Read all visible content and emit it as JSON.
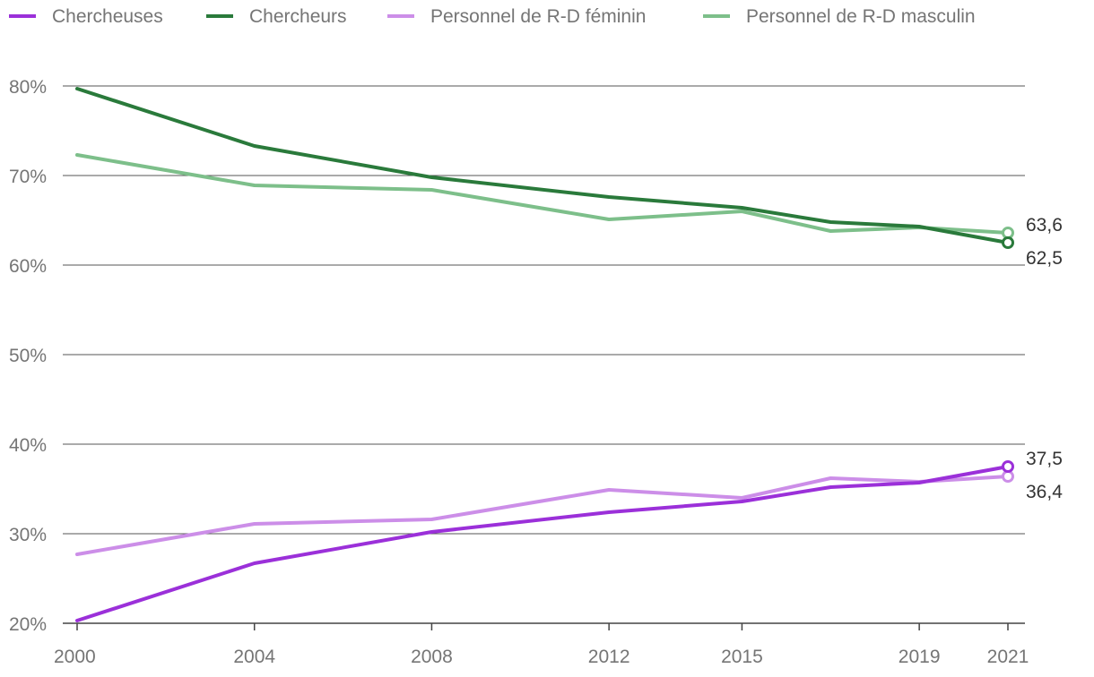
{
  "chart_data": {
    "type": "line",
    "x_labels": [
      "2000",
      "2004",
      "2008",
      "2012",
      "2015",
      "2019",
      "2021"
    ],
    "y_tick_labels": [
      "20%",
      "30%",
      "40%",
      "50%",
      "60%",
      "70%",
      "80%"
    ],
    "ylim": [
      20,
      80
    ],
    "xlim": [
      2000,
      2021
    ],
    "grid": true,
    "legend_position": "top-left",
    "series": [
      {
        "name": "Chercheuses",
        "color": "#9b30d9",
        "x": [
          2000,
          2004,
          2008,
          2012,
          2015,
          2017,
          2019,
          2021
        ],
        "values": [
          20.3,
          26.7,
          30.2,
          32.4,
          33.6,
          35.2,
          35.7,
          37.5
        ],
        "end_label": "37,5"
      },
      {
        "name": "Chercheurs",
        "color": "#2a7a3b",
        "x": [
          2000,
          2004,
          2008,
          2012,
          2015,
          2017,
          2019,
          2021
        ],
        "values": [
          79.7,
          73.3,
          69.8,
          67.6,
          66.4,
          64.8,
          64.3,
          62.5
        ],
        "end_label": "62,5"
      },
      {
        "name": "Personnel de R-D féminin",
        "color": "#cc8ee8",
        "x": [
          2000,
          2004,
          2008,
          2012,
          2015,
          2017,
          2019,
          2021
        ],
        "values": [
          27.7,
          31.1,
          31.6,
          34.9,
          34.0,
          36.2,
          35.8,
          36.4
        ],
        "end_label": "36,4"
      },
      {
        "name": "Personnel de R-D masculin",
        "color": "#7dbf8a",
        "x": [
          2000,
          2004,
          2008,
          2012,
          2015,
          2017,
          2019,
          2021
        ],
        "values": [
          72.3,
          68.9,
          68.4,
          65.1,
          66.0,
          63.8,
          64.2,
          63.6
        ],
        "end_label": "63,6"
      }
    ]
  }
}
